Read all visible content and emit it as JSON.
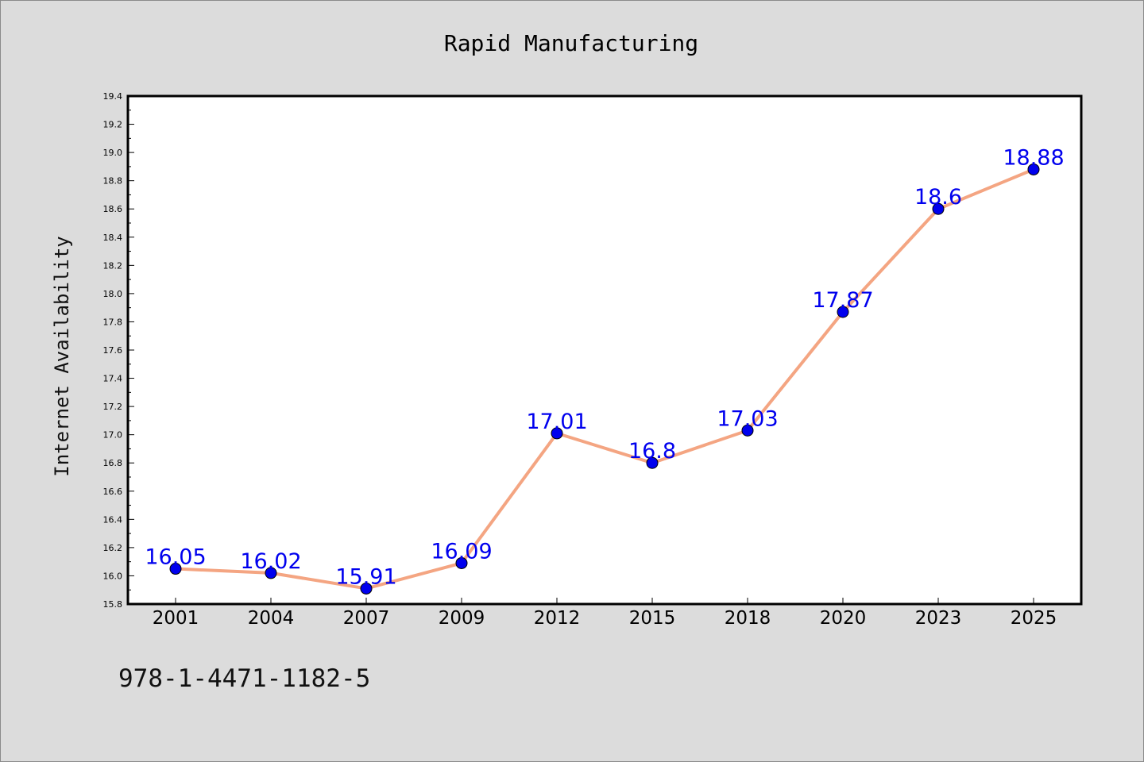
{
  "chart_data": {
    "type": "line",
    "title": "Rapid Manufacturing",
    "xlabel": "",
    "ylabel": "Internet Availability",
    "categories": [
      "2001",
      "2004",
      "2007",
      "2009",
      "2012",
      "2015",
      "2018",
      "2020",
      "2023",
      "2025"
    ],
    "series": [
      {
        "values": [
          16.05,
          16.02,
          15.91,
          16.09,
          17.01,
          16.8,
          17.03,
          17.87,
          18.6,
          18.88
        ],
        "data_labels": [
          "16.05",
          "16.02",
          "15.91",
          "16.09",
          "17.01",
          "16.8",
          "17.03",
          "17.87",
          "18.6",
          "18.88"
        ],
        "line_color": "#f4a582",
        "marker_color": "#0000ee"
      }
    ],
    "ylim": [
      15.8,
      19.4
    ],
    "yticks": [
      "15.8",
      "16.0",
      "16.2",
      "16.4",
      "16.6",
      "16.8",
      "17.0",
      "17.2",
      "17.4",
      "17.6",
      "17.8",
      "18.0",
      "18.2",
      "18.4",
      "18.6",
      "18.8",
      "19.0",
      "19.2",
      "19.4"
    ],
    "grid": false,
    "legend": "none",
    "label_color": "#0000ee"
  },
  "footer": {
    "text": "978-1-4471-1182-5"
  }
}
